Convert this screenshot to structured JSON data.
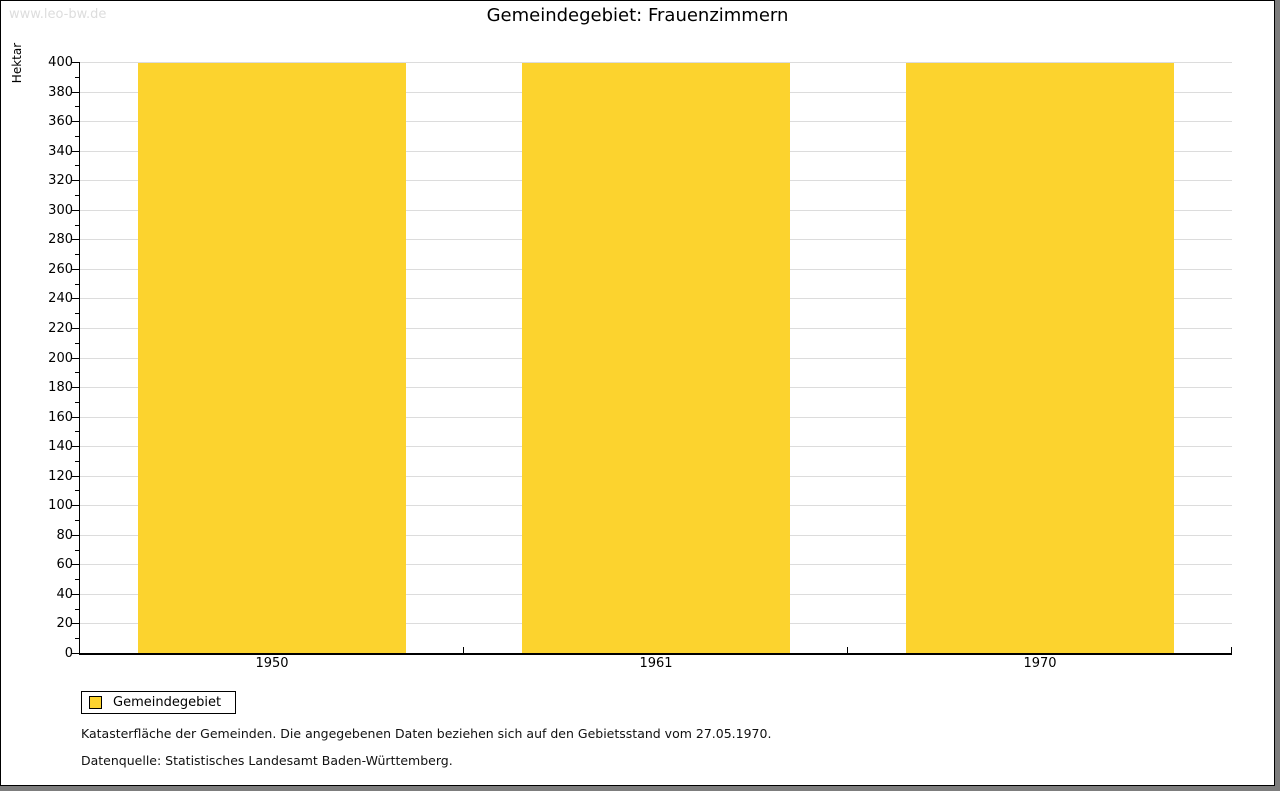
{
  "page": {
    "watermark": "www.leo-bw.de",
    "title": "Gemeindegebiet: Frauenzimmern",
    "footnote1": "Katasterfläche der Gemeinden. Die angegebenen Daten beziehen sich auf den Gebietsstand vom 27.05.1970.",
    "footnote2": "Datenquelle: Statistisches Landesamt Baden-Württemberg."
  },
  "legend": {
    "label": "Gemeindegebiet",
    "swatch_color": "#FCD32E"
  },
  "chart_data": {
    "type": "bar",
    "title": "Gemeindegebiet: Frauenzimmern",
    "categories": [
      "1950",
      "1961",
      "1970"
    ],
    "series": [
      {
        "name": "Gemeindegebiet",
        "color": "#FCD32E",
        "values": [
          399,
          399,
          399
        ]
      }
    ],
    "xlabel": "",
    "ylabel": "Hektar",
    "ylim": [
      0,
      400
    ],
    "y_major_step": 20,
    "y_minor_step": 10,
    "grid": "horizontal-major",
    "gridline_color": "#dcdcdc",
    "bar_width_fraction": 0.7,
    "legend_position": "below-left",
    "axis_color": "#000000"
  }
}
